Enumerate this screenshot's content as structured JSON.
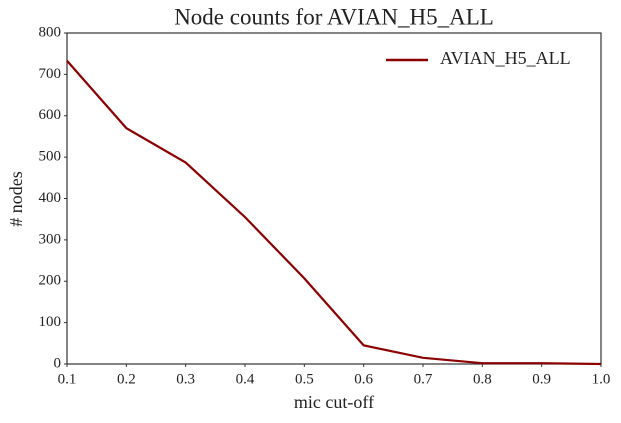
{
  "chart_data": {
    "type": "line",
    "title": "Node counts for AVIAN_H5_ALL",
    "x_label": "mic cut-off",
    "y_label": "# nodes",
    "x": [
      0.1,
      0.2,
      0.3,
      0.4,
      0.5,
      0.6,
      0.7,
      0.8,
      0.9,
      1.0
    ],
    "series": [
      {
        "name": "AVIAN_H5_ALL",
        "color": "#8b0000",
        "values": [
          733,
          570,
          487,
          355,
          207,
          45,
          15,
          2,
          2,
          0
        ]
      }
    ],
    "xlim": [
      0.1,
      1.0
    ],
    "xticks": [
      0.1,
      0.2,
      0.3,
      0.4,
      0.5,
      0.6,
      0.7,
      0.8,
      0.9,
      {
        "value": 1,
        "label": "1.0"
      }
    ],
    "ylim": [
      0,
      800
    ],
    "yticks": [
      0,
      100,
      200,
      300,
      400,
      500,
      600,
      700,
      800
    ],
    "legend": "upper right",
    "grid": false
  }
}
